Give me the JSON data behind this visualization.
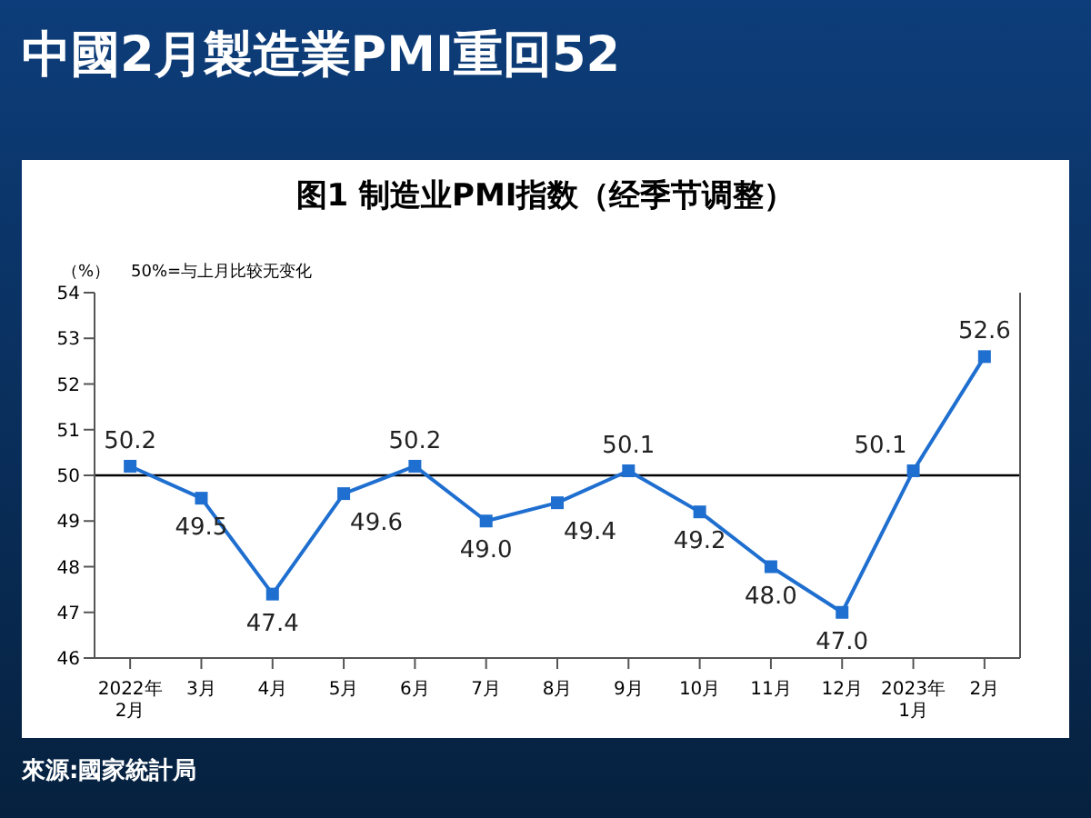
{
  "chart_data": {
    "type": "line",
    "title": "中國2月製造業PMI重回52",
    "subtitle": "图1 制造业PMI指数（经季节调整）",
    "ylabel": "（%）",
    "annotations": [
      "50%=与上月比较无变化",
      "來源:國家統計局"
    ],
    "categories": [
      "2022年\n2月",
      "3月",
      "4月",
      "5月",
      "6月",
      "7月",
      "8月",
      "9月",
      "10月",
      "11月",
      "12月",
      "2023年\n1月",
      "2月"
    ],
    "series": [
      {
        "color": "#1f6fd0",
        "values": [
          50.2,
          49.5,
          47.4,
          49.6,
          50.2,
          49.0,
          49.4,
          50.1,
          49.2,
          48.0,
          47.0,
          50.1,
          52.6
        ],
        "value_labels": [
          "50.2",
          "49.5",
          "47.4",
          "49.6",
          "50.2",
          "49.0",
          "49.4",
          "50.1",
          "49.2",
          "48.0",
          "47.0",
          "50.1",
          "52.6"
        ]
      }
    ],
    "ylim": [
      46,
      54
    ],
    "yticks": [
      46,
      47,
      48,
      49,
      50,
      51,
      52,
      53,
      54
    ],
    "ref_lines": [
      {
        "axis": "y",
        "value": 50,
        "color": "#000000"
      }
    ],
    "marker": "square",
    "line_style": "solid",
    "legend": false,
    "grid": false
  }
}
